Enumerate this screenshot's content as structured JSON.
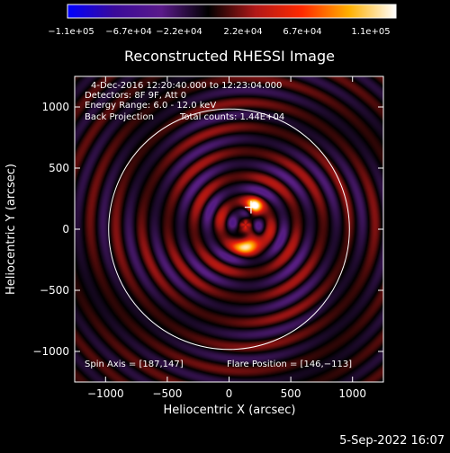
{
  "chart_data": {
    "type": "heatmap",
    "title": "Reconstructed RHESSI Image",
    "xlabel": "Heliocentric X (arcsec)",
    "ylabel": "Heliocentric Y (arcsec)",
    "xlim": [
      -1250,
      1250
    ],
    "ylim": [
      -1250,
      1250
    ],
    "x_ticks": [
      -1000,
      -500,
      0,
      500,
      1000
    ],
    "x_tick_labels": [
      "−1000",
      "−500",
      "0",
      "500",
      "1000"
    ],
    "y_ticks": [
      -1000,
      -500,
      0,
      500,
      1000
    ],
    "y_tick_labels": [
      "−1000",
      "−500",
      "0",
      "500",
      "1000"
    ],
    "colorbar": {
      "range": [
        -110000,
        110000
      ],
      "tick_labels": [
        "−1.1e+05",
        "−6.7e+04",
        "−2.2e+04",
        "2.2e+04",
        "6.7e+04",
        "1.1e+05"
      ],
      "colormap": [
        "#0000ff",
        "#3a0a9a",
        "#5a1a8a",
        "#000000",
        "#b01818",
        "#ff2a00",
        "#ffb000",
        "#ffffff"
      ]
    },
    "annotations": {
      "time_range": "4-Dec-2016 12:20:40.000 to 12:23:04.000",
      "detectors": "Detectors: 8F 9F, Att 0",
      "energy_range": "Energy Range: 6.0 - 12.0 keV",
      "method": "Back Projection",
      "total_counts": "Total counts: 1.44E+04",
      "spin_axis": "Spin Axis = [187,147]",
      "flare_position": "Flare Position = [146,−113]"
    },
    "solar_limb_radius_arcsec": 975,
    "flare_marker": [
      200,
      180
    ],
    "sources": [
      {
        "x": 200,
        "y": 180,
        "peak": 110000
      },
      {
        "x": 145,
        "y": -110,
        "peak": 90000
      }
    ]
  },
  "footer": {
    "timestamp": "5-Sep-2022 16:07"
  }
}
